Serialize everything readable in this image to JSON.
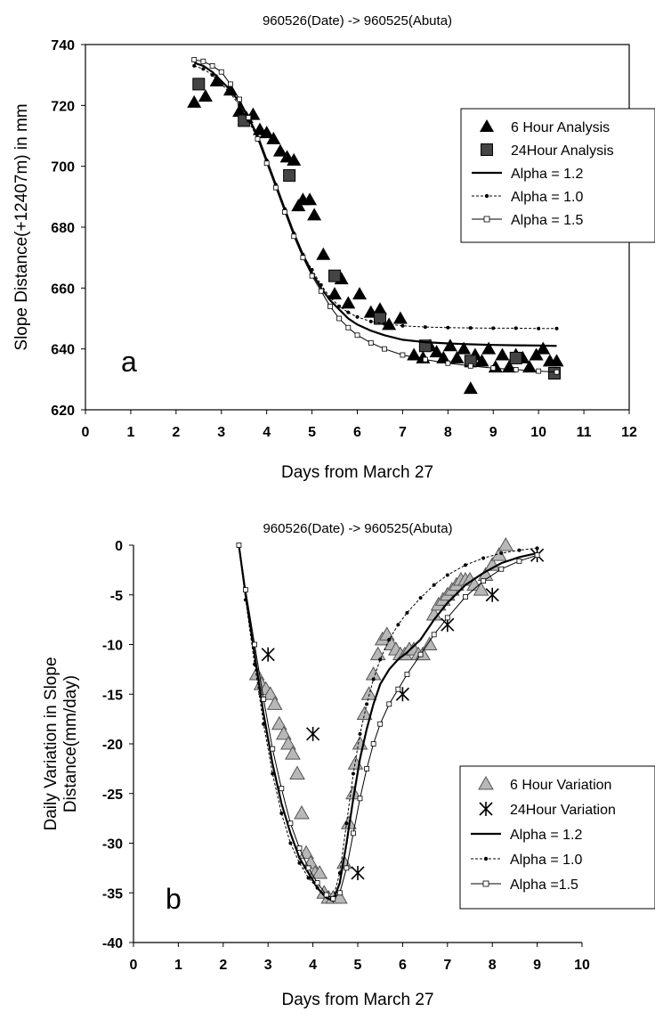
{
  "chart_data": [
    {
      "type": "scatter",
      "panel_letter": "a",
      "title": "960526(Date) -> 960525(Abuta)",
      "xlabel": "Days from March 27",
      "ylabel": "Slope Distance(+12407m) in mm",
      "xlim": [
        0,
        12
      ],
      "ylim": [
        620,
        740
      ],
      "xticks": [
        0,
        1,
        2,
        3,
        4,
        5,
        6,
        7,
        8,
        9,
        10,
        11,
        12
      ],
      "yticks": [
        620,
        640,
        660,
        680,
        700,
        720,
        740
      ],
      "grid": false,
      "legend_position": "right",
      "series": [
        {
          "name": "6 Hour Analysis",
          "kind": "triangle",
          "color": "#000000",
          "x": [
            2.4,
            2.65,
            2.9,
            3.2,
            3.4,
            3.55,
            3.7,
            3.85,
            4.0,
            4.15,
            4.3,
            4.45,
            4.6,
            4.7,
            4.8,
            4.95,
            5.05,
            5.25,
            5.5,
            5.65,
            5.8,
            6.05,
            6.3,
            6.5,
            6.7,
            6.95,
            7.25,
            7.45,
            7.6,
            7.75,
            7.9,
            8.05,
            8.2,
            8.35,
            8.5,
            8.6,
            8.75,
            8.9,
            9.05,
            9.2,
            9.35,
            9.5,
            9.65,
            9.8,
            9.95,
            10.1,
            10.25,
            10.4
          ],
          "y": [
            721,
            723,
            728,
            725,
            718,
            716,
            717,
            712,
            711,
            709,
            705,
            703,
            702,
            687,
            689,
            689,
            684,
            671,
            658,
            663,
            655,
            658,
            652,
            653,
            648,
            650,
            638,
            637,
            641,
            639,
            637,
            641,
            637,
            640,
            627,
            638,
            636,
            640,
            634,
            638,
            634,
            638,
            637,
            634,
            638,
            640,
            636,
            636
          ]
        },
        {
          "name": "24Hour Analysis",
          "kind": "square",
          "color": "#000000",
          "x": [
            2.5,
            3.5,
            4.5,
            5.5,
            6.5,
            7.5,
            8.5,
            9.5,
            10.35
          ],
          "y": [
            727,
            715,
            697,
            664,
            650,
            641,
            636,
            637,
            632
          ]
        },
        {
          "name": "Alpha = 1.2",
          "kind": "line",
          "color": "#000000",
          "x": [
            2.4,
            2.6,
            2.8,
            3.0,
            3.2,
            3.4,
            3.6,
            3.8,
            4.0,
            4.2,
            4.4,
            4.6,
            4.8,
            5.0,
            5.2,
            5.4,
            5.6,
            5.8,
            6.0,
            6.3,
            6.6,
            7.0,
            7.5,
            8.0,
            8.5,
            9.0,
            9.5,
            10.0,
            10.4
          ],
          "y": [
            734,
            733,
            731,
            728,
            725,
            721,
            716,
            710,
            702,
            694,
            686,
            678,
            671,
            665,
            660,
            656,
            653,
            650,
            648,
            646,
            644.5,
            643,
            642.2,
            641.8,
            641.5,
            641.3,
            641.2,
            641.1,
            641
          ]
        },
        {
          "name": "Alpha = 1.0",
          "kind": "line-dot",
          "color": "#000000",
          "x": [
            2.4,
            2.6,
            2.8,
            3.0,
            3.2,
            3.4,
            3.6,
            3.8,
            4.0,
            4.2,
            4.4,
            4.6,
            4.8,
            5.0,
            5.2,
            5.4,
            5.6,
            5.8,
            6.0,
            6.3,
            6.6,
            7.0,
            7.5,
            8.0,
            8.5,
            9.0,
            9.5,
            10.0,
            10.4
          ],
          "y": [
            733,
            732,
            730,
            727,
            724,
            720,
            715,
            709,
            702,
            694,
            686,
            678,
            671,
            666,
            661,
            657,
            654,
            652,
            650.5,
            649,
            648.2,
            647.6,
            647.2,
            647,
            646.9,
            646.8,
            646.8,
            646.7,
            646.7
          ]
        },
        {
          "name": "Alpha = 1.5",
          "kind": "line-square",
          "color": "#000000",
          "x": [
            2.4,
            2.6,
            2.8,
            3.0,
            3.2,
            3.4,
            3.6,
            3.8,
            4.0,
            4.2,
            4.4,
            4.6,
            4.8,
            5.0,
            5.2,
            5.4,
            5.6,
            5.8,
            6.0,
            6.3,
            6.6,
            7.0,
            7.5,
            8.0,
            8.5,
            9.0,
            9.5,
            10.0,
            10.4
          ],
          "y": [
            735,
            734.5,
            733,
            731,
            727,
            722,
            716,
            709,
            701,
            693,
            685,
            677,
            670,
            664,
            659,
            654,
            650,
            647,
            644.5,
            642,
            640,
            638,
            636.5,
            635.3,
            634.4,
            633.7,
            633.2,
            632.7,
            632.4
          ]
        }
      ]
    },
    {
      "type": "scatter",
      "panel_letter": "b",
      "title": "960526(Date) -> 960525(Abuta)",
      "xlabel": "Days from March 27",
      "ylabel": "Daily Variation in Slope Distance(mm/day)",
      "ylabel_lines": [
        "Daily Variation in Slope",
        "Distance(mm/day)"
      ],
      "xlim": [
        0,
        10
      ],
      "ylim": [
        -40,
        0
      ],
      "xticks": [
        0,
        1,
        2,
        3,
        4,
        5,
        6,
        7,
        8,
        9,
        10
      ],
      "yticks": [
        0,
        -5,
        -10,
        -15,
        -20,
        -25,
        -30,
        -35,
        -40
      ],
      "grid": false,
      "legend_position": "right",
      "series": [
        {
          "name": "6 Hour Variation",
          "kind": "triangle-gray",
          "color": "#a0a0a0",
          "x": [
            2.75,
            2.85,
            2.95,
            3.05,
            3.15,
            3.25,
            3.35,
            3.45,
            3.55,
            3.65,
            3.75,
            3.85,
            3.95,
            4.05,
            4.15,
            4.25,
            4.35,
            4.45,
            4.6,
            4.7,
            4.8,
            4.9,
            4.95,
            5.05,
            5.15,
            5.25,
            5.35,
            5.45,
            5.55,
            5.65,
            5.75,
            5.85,
            5.95,
            6.05,
            6.15,
            6.25,
            6.35,
            6.45,
            6.6,
            6.7,
            6.8,
            6.9,
            7.0,
            7.1,
            7.2,
            7.3,
            7.4,
            7.5,
            7.6,
            7.75,
            7.85,
            8.0,
            8.15,
            8.3
          ],
          "y": [
            -13,
            -14,
            -14.5,
            -15,
            -16,
            -18,
            -19,
            -20,
            -21,
            -23,
            -27,
            -31,
            -32,
            -33,
            -33,
            -35,
            -35.5,
            -35.5,
            -35.5,
            -32,
            -28,
            -25,
            -22,
            -20,
            -17,
            -15,
            -13,
            -11,
            -9.5,
            -9,
            -10,
            -10.5,
            -11,
            -11,
            -10.5,
            -10.5,
            -11,
            -11,
            -10,
            -7,
            -6,
            -5.5,
            -5,
            -4.5,
            -4,
            -3.5,
            -3.5,
            -3.5,
            -4,
            -4.5,
            -3,
            -2,
            -1,
            0
          ]
        },
        {
          "name": "24Hour Variation",
          "kind": "star",
          "color": "#000000",
          "x": [
            3.0,
            4.0,
            5.0,
            6.0,
            7.0,
            8.0,
            9.0
          ],
          "y": [
            -11,
            -19,
            -33,
            -15,
            -8,
            -5,
            -1
          ]
        },
        {
          "name": "Alpha = 1.2",
          "kind": "line",
          "color": "#000000",
          "x": [
            2.35,
            2.5,
            2.7,
            2.9,
            3.1,
            3.3,
            3.5,
            3.7,
            3.9,
            4.1,
            4.3,
            4.45,
            4.6,
            4.75,
            4.9,
            5.05,
            5.2,
            5.35,
            5.5,
            5.7,
            5.9,
            6.1,
            6.4,
            6.7,
            7.0,
            7.4,
            7.8,
            8.2,
            8.6,
            9.0
          ],
          "y": [
            0,
            -5,
            -11,
            -17,
            -22,
            -26,
            -29,
            -31.5,
            -33,
            -34.5,
            -35.5,
            -35.8,
            -34,
            -30,
            -25.5,
            -21.5,
            -18.5,
            -16,
            -14,
            -12.5,
            -11.5,
            -10.8,
            -9.5,
            -7.5,
            -5.8,
            -4,
            -2.8,
            -1.8,
            -1.2,
            -0.8
          ]
        },
        {
          "name": "Alpha = 1.0",
          "kind": "line-dot",
          "color": "#000000",
          "x": [
            2.35,
            2.5,
            2.7,
            2.9,
            3.1,
            3.3,
            3.5,
            3.7,
            3.9,
            4.1,
            4.3,
            4.45,
            4.6,
            4.75,
            4.9,
            5.05,
            5.2,
            5.35,
            5.5,
            5.7,
            5.9,
            6.1,
            6.4,
            6.7,
            7.0,
            7.4,
            7.8,
            8.2,
            8.6,
            9.0
          ],
          "y": [
            0,
            -5.5,
            -12,
            -18,
            -23,
            -27,
            -30,
            -32,
            -33.5,
            -34.5,
            -35.3,
            -35.5,
            -33,
            -28,
            -23,
            -19,
            -16,
            -13.5,
            -11.5,
            -9.5,
            -8,
            -6.8,
            -5.3,
            -4,
            -3,
            -2,
            -1.3,
            -0.8,
            -0.5,
            -0.3
          ]
        },
        {
          "name": "Alpha =1.5",
          "kind": "line-square",
          "color": "#000000",
          "x": [
            2.35,
            2.5,
            2.7,
            2.9,
            3.1,
            3.3,
            3.5,
            3.7,
            3.9,
            4.1,
            4.3,
            4.45,
            4.6,
            4.75,
            4.9,
            5.05,
            5.2,
            5.35,
            5.5,
            5.7,
            5.9,
            6.1,
            6.4,
            6.7,
            7.0,
            7.4,
            7.8,
            8.2,
            8.6,
            9.0
          ],
          "y": [
            0,
            -4.5,
            -10,
            -15.5,
            -20.5,
            -24.5,
            -28,
            -30.5,
            -32.5,
            -34,
            -35.2,
            -35.6,
            -35,
            -32.5,
            -29,
            -25.5,
            -22.5,
            -20,
            -18,
            -16,
            -14.5,
            -13,
            -11,
            -9,
            -7.3,
            -5.2,
            -3.6,
            -2.4,
            -1.6,
            -1
          ]
        }
      ]
    }
  ]
}
